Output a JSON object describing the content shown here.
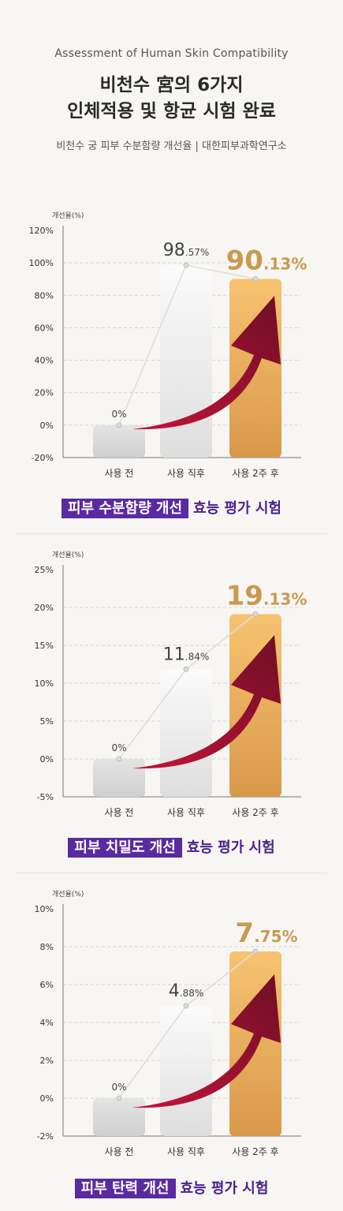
{
  "header": {
    "eyebrow": "Assessment of Human Skin Compatibility",
    "title_line1": "비천수 宮의 6가지",
    "title_line2": "인체적용 및 항균 시험 완료",
    "subtitle": "비천수 궁 피부 수분함량 개선율 | 대한피부과학연구소"
  },
  "colors": {
    "gold": "#c99a4f",
    "purple": "#5a2aa0",
    "arrow": "#9c1430"
  },
  "chart_data": [
    {
      "type": "bar",
      "ylabel": "개선율(%)",
      "categories": [
        "사용 전",
        "사용 직후",
        "사용 2주 후"
      ],
      "values": [
        0,
        98.57,
        90.13
      ],
      "label_int": [
        "0%",
        "98",
        "90"
      ],
      "label_dec": [
        "",
        ".57%",
        ".13%"
      ],
      "ylim": [
        -20,
        120
      ],
      "yticks": [
        120,
        100,
        80,
        60,
        40,
        20,
        0,
        -20
      ],
      "ytick_labels": [
        "120%",
        "100%",
        "80%",
        "60%",
        "40%",
        "20%",
        "0%",
        "-20%"
      ],
      "caption_highlight": "피부 수분함량 개선",
      "caption_rest": "효능 평가 시험"
    },
    {
      "type": "bar",
      "ylabel": "개선율(%)",
      "categories": [
        "사용 전",
        "사용 직후",
        "사용 2주 후"
      ],
      "values": [
        0,
        11.84,
        19.13
      ],
      "label_int": [
        "0%",
        "11",
        "19"
      ],
      "label_dec": [
        "",
        ".84%",
        ".13%"
      ],
      "ylim": [
        -5,
        25
      ],
      "yticks": [
        25,
        20,
        15,
        10,
        5,
        0,
        -5
      ],
      "ytick_labels": [
        "25%",
        "20%",
        "15%",
        "10%",
        "5%",
        "0%",
        "-5%"
      ],
      "caption_highlight": "피부 치밀도 개선",
      "caption_rest": "효능 평가 시험"
    },
    {
      "type": "bar",
      "ylabel": "개선율(%)",
      "categories": [
        "사용 전",
        "사용 직후",
        "사용 2주 후"
      ],
      "values": [
        0,
        4.88,
        7.75
      ],
      "label_int": [
        "0%",
        "4",
        "7"
      ],
      "label_dec": [
        "",
        ".88%",
        ".75%"
      ],
      "ylim": [
        -2,
        10
      ],
      "yticks": [
        10,
        8,
        6,
        4,
        2,
        0,
        -2
      ],
      "ytick_labels": [
        "10%",
        "8%",
        "6%",
        "4%",
        "2%",
        "0%",
        "-2%"
      ],
      "caption_highlight": "피부 탄력 개선",
      "caption_rest": "효능 평가 시험"
    }
  ]
}
